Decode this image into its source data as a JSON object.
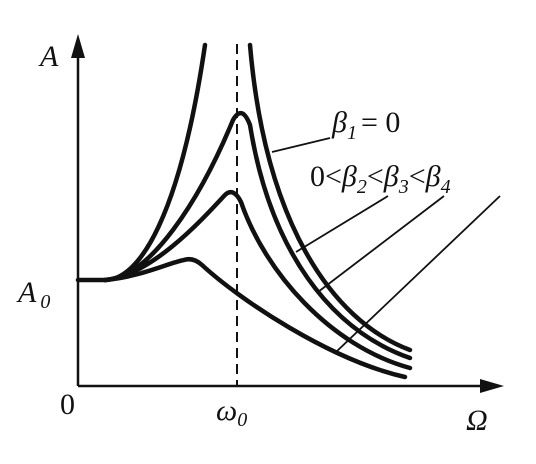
{
  "axes": {
    "y_label": "A",
    "y_level": {
      "base": "A",
      "sub": "0"
    },
    "origin": "0",
    "x_level": {
      "base": "ω",
      "sub": "0"
    },
    "x_label": "Ω"
  },
  "legend": {
    "undamped": {
      "base": "β",
      "sub": "1",
      "rest": "= 0"
    },
    "damped": {
      "start": "0",
      "lt1": "<",
      "b2": "β",
      "s2": "2",
      "lt2": "<",
      "b3": "β",
      "s3": "3",
      "lt3": "<",
      "b4": "β",
      "s4": "4"
    }
  }
}
